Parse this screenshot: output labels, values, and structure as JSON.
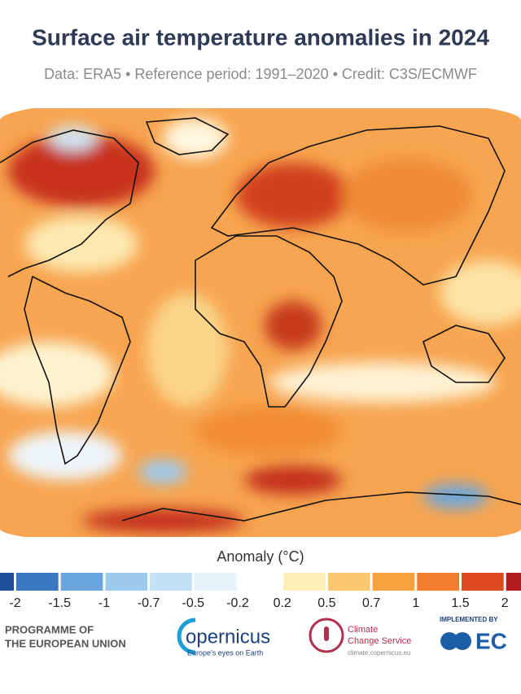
{
  "header": {
    "title": "Surface air temperature anomalies in 2024",
    "subtitle": "Data: ERA5 • Reference period: 1991–2020 • Credit: C3S/ECMWF"
  },
  "legend": {
    "title": "Anomaly (°C)",
    "ticks": [
      -2,
      -1.5,
      -1,
      -0.7,
      -0.5,
      -0.2,
      0.2,
      0.5,
      0.7,
      1,
      1.5,
      2
    ],
    "colors": [
      "#1f4f99",
      "#3b78c2",
      "#6aa6dd",
      "#9dcbee",
      "#c4e2f6",
      "#e6f3fb",
      "#ffffff",
      "#fdeeb8",
      "#fbc870",
      "#f8a13f",
      "#f27d2c",
      "#de4a22",
      "#b41d1f"
    ]
  },
  "footer": {
    "eu": [
      "PROGRAMME OF",
      "THE EUROPEAN UNION"
    ],
    "copernicus": {
      "name": "opernicus",
      "tagline": "Europe's eyes on Earth"
    },
    "c3s": {
      "name": [
        "Climate",
        "Change Service"
      ],
      "url": "climate.copernicus.eu"
    },
    "ecmwf": {
      "caption": "IMPLEMENTED BY",
      "name": "EC"
    }
  }
}
